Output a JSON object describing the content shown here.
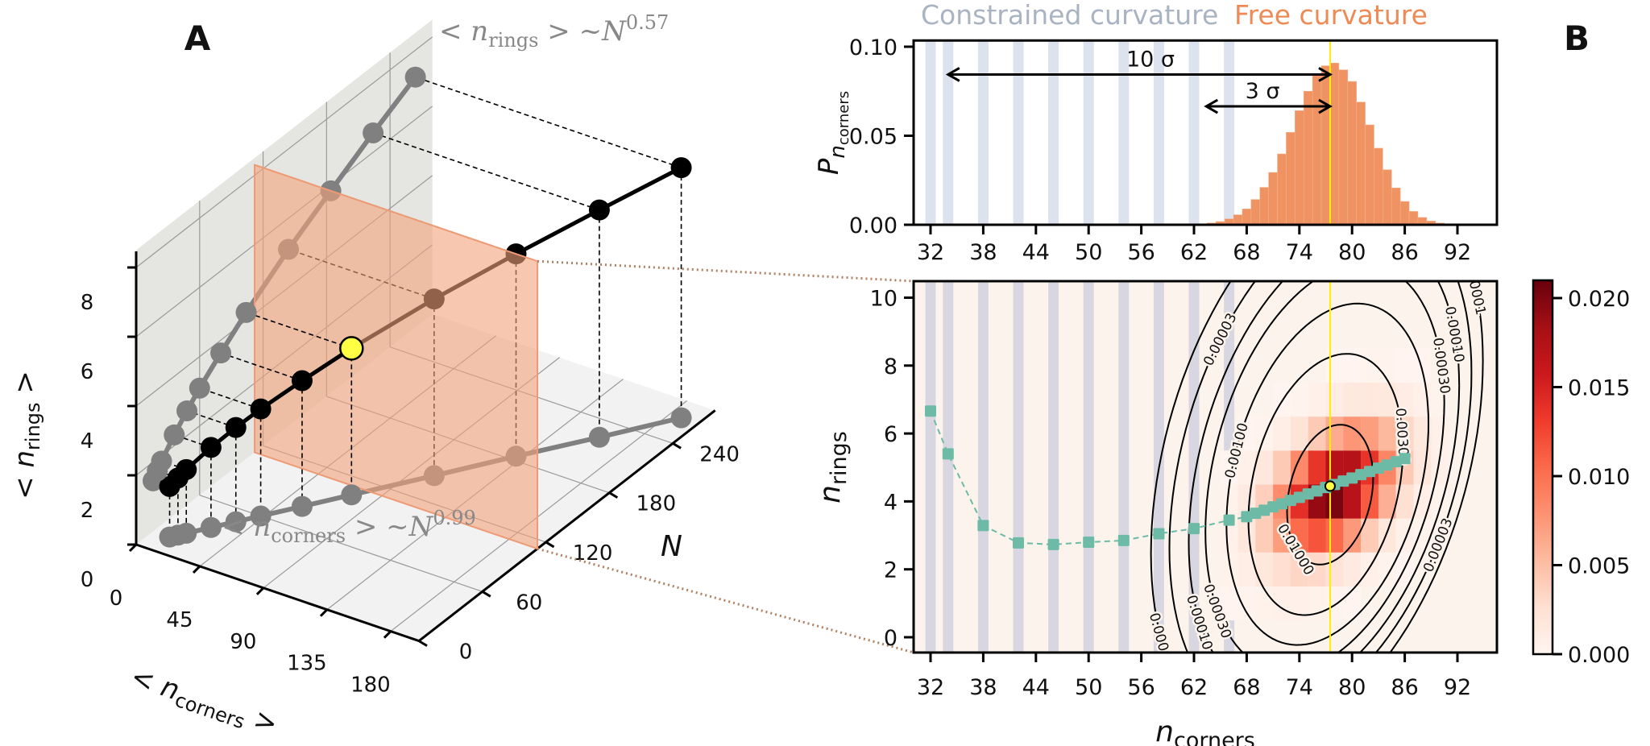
{
  "panel_labels": {
    "a": "A",
    "b": "B"
  },
  "colors": {
    "constrained": "#a9b3c2",
    "free": "#ee8a55",
    "stripe_hist": "#dde3ee",
    "stripe_heat": "#d8d7e1",
    "heat_bg": "#fcf4ec",
    "teal": "#6dbaa6",
    "highlight": "#ffff44",
    "plane": "#f2a27c"
  },
  "chart_data": [
    {
      "panel": "A",
      "type": "scatter-3d",
      "axes": {
        "x": {
          "label_prefix": "< ",
          "label_var": "n",
          "label_sub": "corners",
          "label_suffix": " >",
          "ticks": [
            "0",
            "45",
            "90",
            "135",
            "180"
          ],
          "tick_values": [
            0,
            45,
            90,
            135,
            180
          ],
          "range": [
            0,
            200
          ]
        },
        "y": {
          "label": "N",
          "ticks": [
            "0",
            "60",
            "120",
            "180",
            "240"
          ],
          "tick_values": [
            0,
            60,
            120,
            180,
            240
          ],
          "range": [
            0,
            280
          ]
        },
        "z": {
          "label_prefix": "< ",
          "label_var": "n",
          "label_sub": "rings",
          "label_suffix": " >",
          "ticks": [
            "0",
            "2",
            "4",
            "6",
            "8"
          ],
          "tick_values": [
            0,
            2,
            4,
            6,
            8
          ],
          "range": [
            0,
            8.5
          ]
        }
      },
      "N": [
        16,
        20,
        24,
        36,
        48,
        60,
        80,
        104,
        144,
        184,
        224,
        264
      ],
      "n_corners": [
        11.7,
        14.6,
        17.5,
        26.0,
        34.6,
        43.2,
        57.5,
        74.5,
        103,
        131,
        160,
        188
      ],
      "n_rings": [
        1.46,
        1.65,
        1.84,
        2.31,
        2.72,
        3.09,
        3.63,
        4.23,
        5.1,
        5.84,
        6.56,
        7.22
      ],
      "highlight_index": 7,
      "slice_plane_N": 112,
      "annotations": {
        "rings_fit": {
          "prefix": "< ",
          "var": "n",
          "sub": "rings",
          "mid": " > ~",
          "base": "N",
          "exp": "0.57"
        },
        "corners_fit": {
          "prefix": "< ",
          "var": "n",
          "sub": "corners",
          "mid": " > ~",
          "base": "N",
          "exp": "0.99"
        }
      }
    },
    {
      "panel": "B-top",
      "type": "bar",
      "xlabel": "",
      "ylabel_var": "P",
      "ylabel_sub": "n",
      "ylabel_subsub": "corners",
      "xlim": [
        30,
        96.5
      ],
      "ylim": [
        0,
        0.1035
      ],
      "xticks": [
        "32",
        "38",
        "44",
        "50",
        "56",
        "62",
        "68",
        "74",
        "80",
        "86",
        "92"
      ],
      "xtick_values": [
        32,
        38,
        44,
        50,
        56,
        62,
        68,
        74,
        80,
        86,
        92
      ],
      "yticks": [
        "0.00",
        "0.05",
        "0.10"
      ],
      "ytick_values": [
        0,
        0.05,
        0.1
      ],
      "region_labels": {
        "constrained": "Constrained curvature",
        "free": "Free curvature"
      },
      "constrained_stripes": [
        32,
        34,
        38,
        42,
        46,
        50,
        54,
        58,
        62,
        66
      ],
      "bin_centers": [
        64,
        65,
        66,
        67,
        68,
        69,
        70,
        71,
        72,
        73,
        74,
        75,
        76,
        77,
        78,
        79,
        80,
        81,
        82,
        83,
        84,
        85,
        86,
        87,
        88,
        89,
        90
      ],
      "values": [
        0.001,
        0.0018,
        0.0033,
        0.0056,
        0.0089,
        0.0142,
        0.021,
        0.0294,
        0.0398,
        0.0519,
        0.0641,
        0.075,
        0.0845,
        0.0893,
        0.0908,
        0.087,
        0.0805,
        0.0689,
        0.0561,
        0.043,
        0.0309,
        0.0207,
        0.0131,
        0.0075,
        0.0041,
        0.0021,
        0.001
      ],
      "mean_line": 77.5,
      "arrows": [
        {
          "label": "10 σ",
          "from": 34,
          "to": 77.5,
          "y": 0.0844
        },
        {
          "label": "3 σ",
          "from": 63.4,
          "to": 77.5,
          "y": 0.0665
        }
      ]
    },
    {
      "panel": "B-bottom",
      "type": "heatmap",
      "xlabel_var": "n",
      "xlabel_sub": "corners",
      "ylabel_var": "n",
      "ylabel_sub": "rings",
      "xlim": [
        30,
        96.5
      ],
      "ylim": [
        -0.45,
        10.48
      ],
      "xticks": [
        "32",
        "38",
        "44",
        "50",
        "56",
        "62",
        "68",
        "74",
        "80",
        "86",
        "92"
      ],
      "xtick_values": [
        32,
        38,
        44,
        50,
        56,
        62,
        68,
        74,
        80,
        86,
        92
      ],
      "yticks": [
        "0",
        "2",
        "4",
        "6",
        "8",
        "10"
      ],
      "ytick_values": [
        0,
        2,
        4,
        6,
        8,
        10
      ],
      "constrained_stripes": [
        32,
        34,
        38,
        42,
        46,
        50,
        54,
        58,
        62,
        66
      ],
      "grid_x": [
        66,
        68,
        70,
        72,
        74,
        76,
        78,
        80,
        82,
        84,
        86,
        88,
        90
      ],
      "grid_y": [
        1,
        2,
        3,
        4,
        5,
        6,
        7,
        8
      ],
      "grid_values": [
        [
          0.0001,
          0.0002,
          0.0004,
          0.0005,
          0.0005,
          0.0004,
          0.0002,
          0.0001,
          0,
          0,
          0,
          0,
          0
        ],
        [
          0.0004,
          0.0009,
          0.0018,
          0.0027,
          0.0033,
          0.0031,
          0.0023,
          0.0014,
          0.0006,
          0.0002,
          0.0001,
          0,
          0
        ],
        [
          0.0006,
          0.0017,
          0.004,
          0.0072,
          0.0104,
          0.0117,
          0.0105,
          0.0074,
          0.0041,
          0.0018,
          0.0006,
          0.0002,
          0
        ],
        [
          0.0004,
          0.0014,
          0.0038,
          0.0083,
          0.014,
          0.019,
          0.0202,
          0.0171,
          0.0114,
          0.006,
          0.0025,
          0.0008,
          0.0002
        ],
        [
          0.0001,
          0.0005,
          0.0016,
          0.0042,
          0.0084,
          0.0136,
          0.0172,
          0.0173,
          0.0137,
          0.0087,
          0.0042,
          0.0017,
          0.0005
        ],
        [
          0,
          0.0001,
          0.0003,
          0.0009,
          0.0022,
          0.0042,
          0.0063,
          0.0076,
          0.0072,
          0.0054,
          0.0032,
          0.0015,
          0.0006
        ],
        [
          0,
          0,
          0,
          0.0001,
          0.0003,
          0.0006,
          0.001,
          0.0015,
          0.0017,
          0.0015,
          0.001,
          0.0006,
          0.0003
        ],
        [
          0,
          0,
          0,
          0,
          0,
          0,
          0.0001,
          0.0001,
          0.0002,
          0.0002,
          0.0001,
          0.0001,
          0
        ]
      ],
      "contours": [
        {
          "level": "0.01000",
          "cx": 77.5,
          "cy": 4.2,
          "rx": 4.9,
          "ry": 2.0,
          "slope": 0.1
        },
        {
          "level": "0.00300",
          "cx": 77.0,
          "cy": 4.5,
          "rx": 8.8,
          "ry": 3.7,
          "slope": 0.12
        },
        {
          "level": "0.00100",
          "cx": 77.2,
          "cy": 4.8,
          "rx": 11.5,
          "ry": 4.8,
          "slope": 0.13
        },
        {
          "level": "0.00030",
          "cx": 76.9,
          "cy": 5.0,
          "rx": 13.6,
          "ry": 5.7,
          "slope": 0.14
        },
        {
          "level": "0.00010",
          "cx": 76.8,
          "cy": 5.1,
          "rx": 15.4,
          "ry": 6.4,
          "slope": 0.15
        },
        {
          "level": "0.00003",
          "cx": 76.4,
          "cy": 5.2,
          "rx": 17.2,
          "ry": 7.1,
          "slope": 0.15
        },
        {
          "level": "0.00001",
          "cx": 76.0,
          "cy": 5.3,
          "rx": 18.9,
          "ry": 7.8,
          "slope": 0.15
        }
      ],
      "path_x": [
        32,
        34,
        38,
        42,
        46,
        50,
        54,
        58,
        62,
        66,
        68,
        69,
        70,
        71,
        72,
        73,
        74,
        75,
        76,
        77,
        78,
        79,
        80,
        81,
        82,
        83,
        84,
        85,
        86
      ],
      "path_y": [
        6.66,
        5.4,
        3.29,
        2.78,
        2.73,
        2.8,
        2.85,
        3.05,
        3.2,
        3.45,
        3.55,
        3.65,
        3.74,
        3.84,
        3.93,
        4.03,
        4.12,
        4.22,
        4.31,
        4.41,
        4.5,
        4.6,
        4.69,
        4.79,
        4.88,
        4.98,
        5.07,
        5.17,
        5.26
      ],
      "highlight_point": [
        77.5,
        4.45
      ],
      "mean_line": 77.5,
      "colorbar": {
        "range": [
          0,
          0.021
        ],
        "ticks": [
          "0.000",
          "0.005",
          "0.010",
          "0.015",
          "0.020"
        ],
        "tick_values": [
          0,
          0.005,
          0.01,
          0.015,
          0.02
        ],
        "colormap": "Reds"
      }
    }
  ]
}
